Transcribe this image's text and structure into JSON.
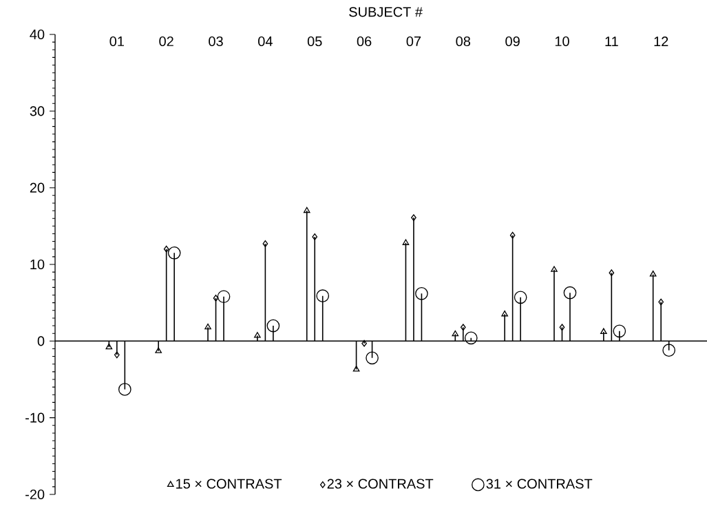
{
  "chart_data": {
    "type": "lollipop",
    "xlabel": "SUBJECT #",
    "categories": [
      "01",
      "02",
      "03",
      "04",
      "05",
      "06",
      "07",
      "08",
      "09",
      "10",
      "11",
      "12"
    ],
    "series": [
      {
        "name": "15 × CONTRAST",
        "color": "#000000",
        "marker": "triangle",
        "values": [
          -0.8,
          -1.3,
          1.8,
          0.7,
          17.0,
          -3.7,
          12.8,
          0.9,
          3.5,
          9.3,
          1.2,
          8.7
        ]
      },
      {
        "name": "23 × CONTRAST",
        "color": "#000000",
        "marker": "diamond",
        "values": [
          -1.8,
          12.0,
          5.6,
          12.7,
          13.6,
          -0.3,
          16.1,
          1.8,
          13.8,
          1.8,
          8.9,
          5.1
        ]
      },
      {
        "name": "31 × CONTRAST",
        "color": "#000000",
        "marker": "circle",
        "values": [
          -6.3,
          11.5,
          5.8,
          2.0,
          5.9,
          -2.2,
          6.2,
          0.4,
          5.7,
          6.3,
          1.3,
          -1.2
        ]
      }
    ],
    "ylim": [
      -20,
      40
    ],
    "yticks": [
      -20,
      -10,
      0,
      10,
      20,
      30,
      40
    ],
    "legend": "bottom"
  }
}
